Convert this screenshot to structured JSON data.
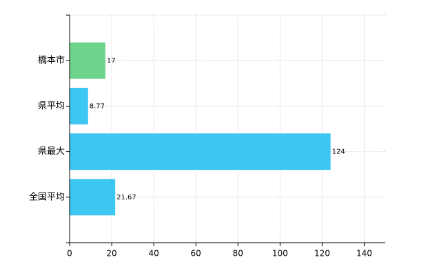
{
  "chart_data": {
    "type": "barh",
    "categories": [
      "橋本市",
      "県平均",
      "県最大",
      "全国平均"
    ],
    "values": [
      17,
      8.77,
      124,
      21.67
    ],
    "colors": [
      "#6fd48b",
      "#3ec6f2",
      "#3ec6f2",
      "#3ec6f2"
    ],
    "xlim": [
      0,
      150
    ],
    "xticks": [
      0,
      20,
      40,
      60,
      80,
      100,
      120,
      140
    ],
    "grid": true
  }
}
